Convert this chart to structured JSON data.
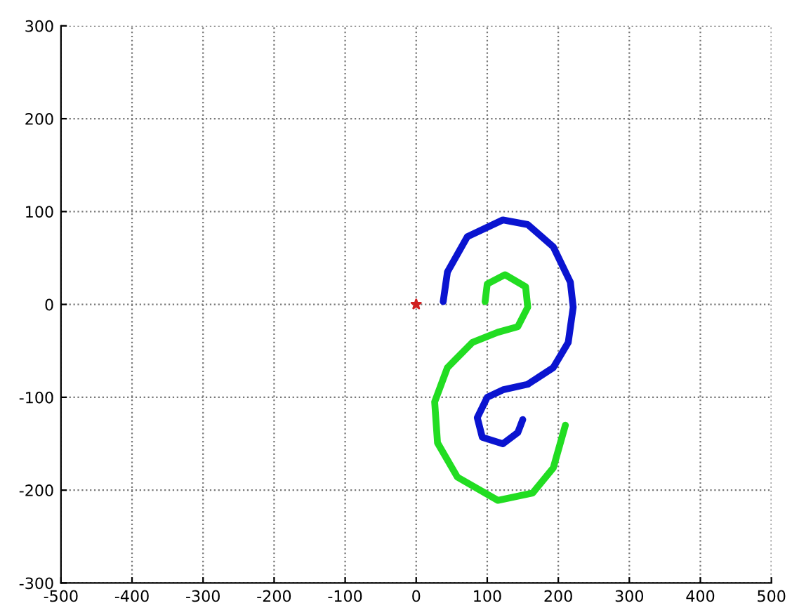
{
  "chart_data": {
    "type": "line",
    "xlim": [
      -500,
      500
    ],
    "ylim": [
      -300,
      300
    ],
    "xticks": [
      -500,
      -400,
      -300,
      -200,
      -100,
      0,
      100,
      200,
      300,
      400,
      500
    ],
    "yticks": [
      -300,
      -200,
      -100,
      0,
      100,
      200,
      300
    ],
    "grid": true,
    "line_style": "solid",
    "series": [
      {
        "color": "#0a14d0",
        "x": [
          38,
          44,
          72,
          122,
          157,
          193,
          217,
          221,
          214,
          193,
          157,
          122,
          100,
          86,
          93,
          122,
          143,
          150
        ],
        "values": [
          3,
          35,
          73,
          91,
          86,
          62,
          24,
          -3,
          -41,
          -68,
          -86,
          -92,
          -100,
          -122,
          -143,
          -150,
          -138,
          -124
        ]
      },
      {
        "color": "#22dd22",
        "x": [
          97,
          100,
          125,
          154,
          157,
          143,
          115,
          79,
          44,
          26,
          30,
          58,
          115,
          164,
          193,
          210
        ],
        "values": [
          3,
          22,
          32,
          19,
          -3,
          -24,
          -30,
          -41,
          -68,
          -105,
          -149,
          -186,
          -211,
          -203,
          -176,
          -130
        ]
      },
      {
        "type": "scatter",
        "marker": "star",
        "color": "#d02020",
        "x": [
          0
        ],
        "values": [
          0
        ]
      }
    ]
  }
}
